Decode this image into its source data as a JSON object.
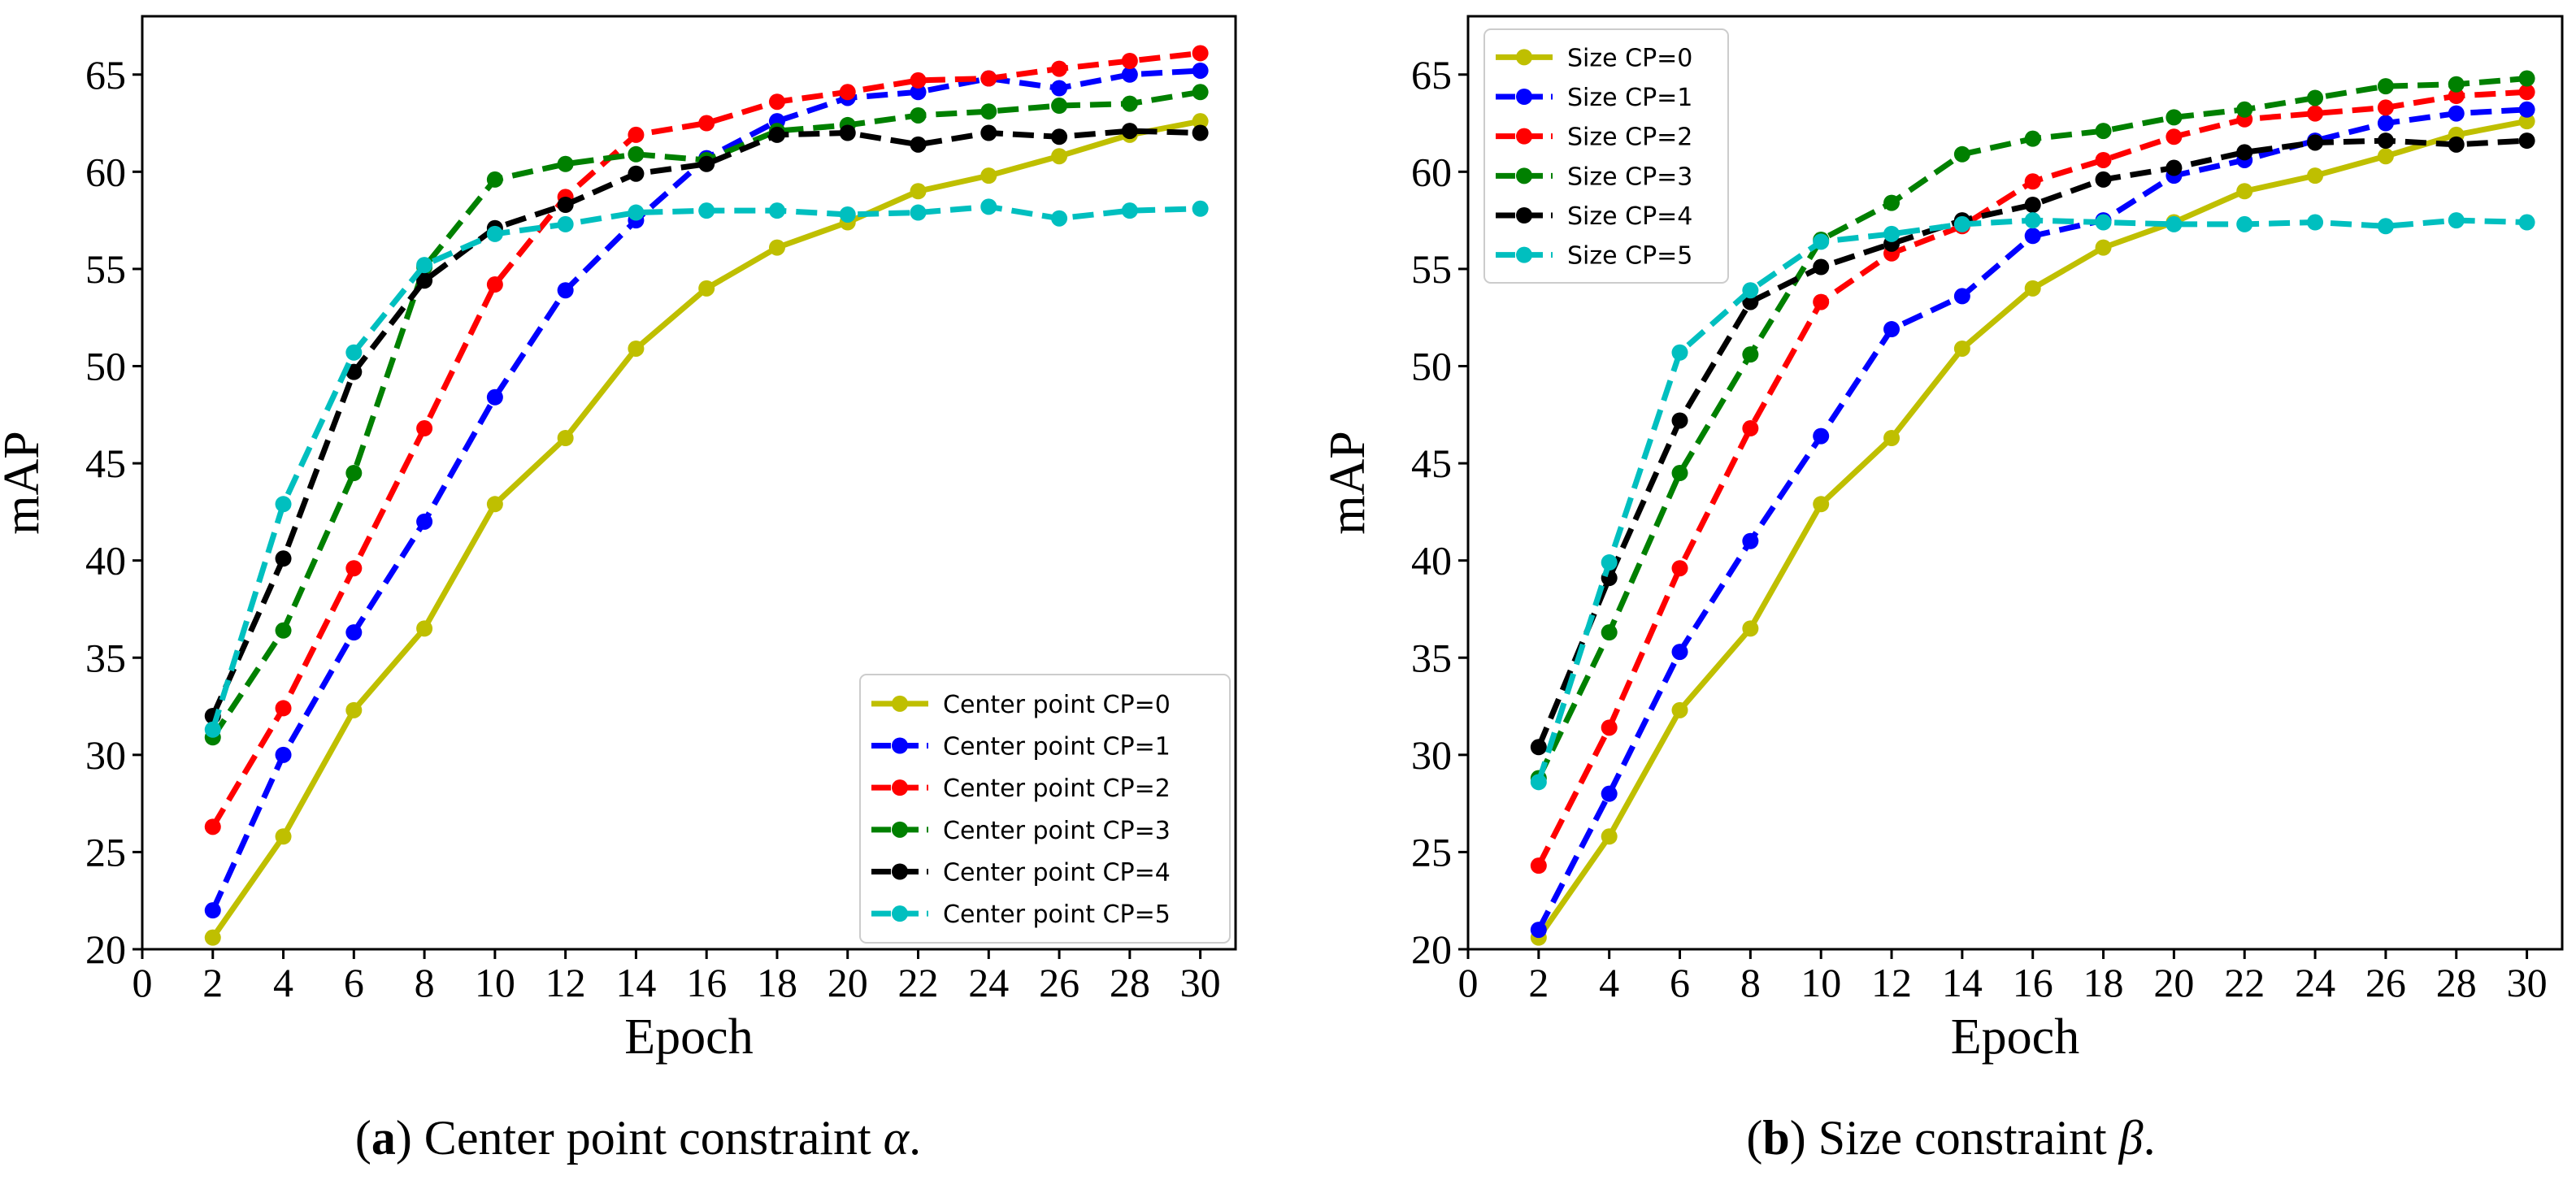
{
  "chart_data": [
    {
      "type": "line",
      "id": "a",
      "xlabel": "Epoch",
      "ylabel": "mAP",
      "xlim": [
        0,
        31
      ],
      "ylim": [
        20,
        68
      ],
      "xticks": [
        "0",
        "2",
        "4",
        "6",
        "8",
        "10",
        "12",
        "14",
        "16",
        "18",
        "20",
        "22",
        "24",
        "26",
        "28",
        "30"
      ],
      "yticks": [
        "20",
        "25",
        "30",
        "35",
        "40",
        "45",
        "50",
        "55",
        "60",
        "65"
      ],
      "legend_position": "bottom-right",
      "caption": {
        "label": "a",
        "text": " Center point constraint ",
        "symbol": "α",
        "end": "."
      },
      "x": [
        2,
        4,
        6,
        8,
        10,
        12,
        14,
        16,
        18,
        20,
        22,
        24,
        26,
        28,
        30
      ],
      "series": [
        {
          "name": "Center point CP=0",
          "color": "#bfbf00",
          "dashed": false,
          "values": [
            20.6,
            25.8,
            32.3,
            36.5,
            42.9,
            46.3,
            50.9,
            54.0,
            56.1,
            57.4,
            59.0,
            59.8,
            60.8,
            61.9,
            62.6
          ]
        },
        {
          "name": "Center point CP=1",
          "color": "#0000ff",
          "dashed": true,
          "values": [
            22.0,
            30.0,
            36.3,
            42.0,
            48.4,
            53.9,
            57.5,
            60.7,
            62.6,
            63.8,
            64.1,
            64.8,
            64.3,
            65.0,
            65.2
          ]
        },
        {
          "name": "Center point CP=2",
          "color": "#ff0000",
          "dashed": true,
          "values": [
            26.3,
            32.4,
            39.6,
            46.8,
            54.2,
            58.7,
            61.9,
            62.5,
            63.6,
            64.1,
            64.7,
            64.8,
            65.3,
            65.7,
            66.1
          ]
        },
        {
          "name": "Center point CP=3",
          "color": "#008000",
          "dashed": true,
          "values": [
            30.9,
            36.4,
            44.5,
            55.1,
            59.6,
            60.4,
            60.9,
            60.6,
            62.1,
            62.4,
            62.9,
            63.1,
            63.4,
            63.5,
            64.1
          ]
        },
        {
          "name": "Center point CP=4",
          "color": "#000000",
          "dashed": true,
          "values": [
            32.0,
            40.1,
            49.7,
            54.4,
            57.1,
            58.3,
            59.9,
            60.4,
            61.9,
            62.0,
            61.4,
            62.0,
            61.8,
            62.1,
            62.0
          ]
        },
        {
          "name": "Center point CP=5",
          "color": "#00bfbf",
          "dashed": true,
          "values": [
            31.3,
            42.9,
            50.7,
            55.2,
            56.8,
            57.3,
            57.9,
            58.0,
            58.0,
            57.8,
            57.9,
            58.2,
            57.6,
            58.0,
            58.1
          ]
        }
      ]
    },
    {
      "type": "line",
      "id": "b",
      "xlabel": "Epoch",
      "ylabel": "mAP",
      "xlim": [
        0,
        31
      ],
      "ylim": [
        20,
        68
      ],
      "xticks": [
        "0",
        "2",
        "4",
        "6",
        "8",
        "10",
        "12",
        "14",
        "16",
        "18",
        "20",
        "22",
        "24",
        "26",
        "28",
        "30"
      ],
      "yticks": [
        "20",
        "25",
        "30",
        "35",
        "40",
        "45",
        "50",
        "55",
        "60",
        "65"
      ],
      "legend_position": "top-left",
      "caption": {
        "label": "b",
        "text": " Size constraint ",
        "symbol": "β",
        "end": "."
      },
      "x": [
        2,
        4,
        6,
        8,
        10,
        12,
        14,
        16,
        18,
        20,
        22,
        24,
        26,
        28,
        30
      ],
      "series": [
        {
          "name": "Size CP=0",
          "color": "#bfbf00",
          "dashed": false,
          "values": [
            20.6,
            25.8,
            32.3,
            36.5,
            42.9,
            46.3,
            50.9,
            54.0,
            56.1,
            57.4,
            59.0,
            59.8,
            60.8,
            61.9,
            62.6
          ]
        },
        {
          "name": "Size CP=1",
          "color": "#0000ff",
          "dashed": true,
          "values": [
            21.0,
            28.0,
            35.3,
            41.0,
            46.4,
            51.9,
            53.6,
            56.7,
            57.5,
            59.8,
            60.6,
            61.6,
            62.5,
            63.0,
            63.2
          ]
        },
        {
          "name": "Size CP=2",
          "color": "#ff0000",
          "dashed": true,
          "values": [
            24.3,
            31.4,
            39.6,
            46.8,
            53.3,
            55.8,
            57.2,
            59.5,
            60.6,
            61.8,
            62.7,
            63.0,
            63.3,
            63.9,
            64.1
          ]
        },
        {
          "name": "Size CP=3",
          "color": "#008000",
          "dashed": true,
          "values": [
            28.8,
            36.3,
            44.5,
            50.6,
            56.5,
            58.4,
            60.9,
            61.7,
            62.1,
            62.8,
            63.2,
            63.8,
            64.4,
            64.5,
            64.8
          ]
        },
        {
          "name": "Size CP=4",
          "color": "#000000",
          "dashed": true,
          "values": [
            30.4,
            39.1,
            47.2,
            53.3,
            55.1,
            56.3,
            57.5,
            58.3,
            59.6,
            60.2,
            61.0,
            61.5,
            61.6,
            61.4,
            61.6
          ]
        },
        {
          "name": "Size CP=5",
          "color": "#00bfbf",
          "dashed": true,
          "values": [
            28.6,
            39.9,
            50.7,
            53.9,
            56.4,
            56.8,
            57.3,
            57.5,
            57.4,
            57.3,
            57.3,
            57.4,
            57.2,
            57.5,
            57.4
          ]
        }
      ]
    }
  ]
}
